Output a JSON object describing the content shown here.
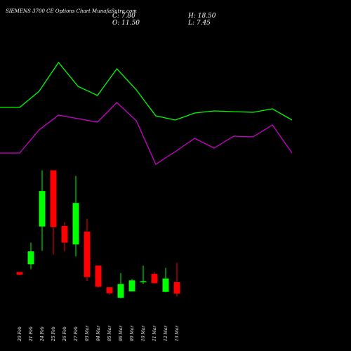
{
  "header": {
    "title": "SIEMENS 3700  CE Options  Chart MunafaSutra.com",
    "close": "C: 7.80",
    "open": "O: 11.50",
    "high": "H: 18.50",
    "low": "L: 7.45"
  },
  "colors": {
    "background": "#000000",
    "up": "#00ff00",
    "down": "#ff0000",
    "line_upper": "#00ff00",
    "line_lower": "#cc00cc",
    "text": "#ffffff"
  },
  "chart_data": {
    "type": "candlestick",
    "categories": [
      "20 Feb",
      "21 Feb",
      "24 Feb",
      "25 Feb",
      "26 Feb",
      "27 Feb",
      "03 Mar",
      "04 Mar",
      "05 Mar",
      "06 Mar",
      "09 Mar",
      "10 Mar",
      "11 Mar",
      "12 Mar",
      "13 Mar"
    ],
    "candles": [
      {
        "open": 10.0,
        "close": 9.4,
        "high": 10.0,
        "low": 9.3
      },
      {
        "open": 11.7,
        "close": 14.5,
        "high": 16.4,
        "low": 10.6
      },
      {
        "open": 19.9,
        "close": 27.6,
        "high": 32.1,
        "low": 14.6
      },
      {
        "open": 32.1,
        "close": 19.8,
        "high": 32.1,
        "low": 13.8
      },
      {
        "open": 20.0,
        "close": 16.4,
        "high": 20.8,
        "low": 14.5
      },
      {
        "open": 16.0,
        "close": 25.0,
        "high": 30.9,
        "low": 13.4
      },
      {
        "open": 18.8,
        "close": 8.9,
        "high": 21.6,
        "low": 8.1
      },
      {
        "open": 11.4,
        "close": 6.8,
        "high": 11.4,
        "low": 6.6
      },
      {
        "open": 6.7,
        "close": 5.4,
        "high": 6.7,
        "low": 5.1
      },
      {
        "open": 4.4,
        "close": 7.4,
        "high": 9.8,
        "low": 4.3
      },
      {
        "open": 5.8,
        "close": 8.2,
        "high": 8.5,
        "low": 5.8
      },
      {
        "open": 7.9,
        "close": 8.0,
        "high": 11.4,
        "low": 7.4
      },
      {
        "open": 9.6,
        "close": 7.6,
        "high": 10.0,
        "low": 7.5
      },
      {
        "open": 5.7,
        "close": 8.6,
        "high": 10.9,
        "low": 5.6
      },
      {
        "open": 7.8,
        "close": 5.3,
        "high": 12.0,
        "low": 4.7
      }
    ],
    "overlay_lines": [
      {
        "color": "#00ff00",
        "values": [
          153,
          153,
          130,
          89,
          123,
          136,
          98,
          128,
          165,
          171,
          161,
          158,
          159,
          160,
          155,
          171
        ]
      },
      {
        "color": "#cc00cc",
        "values": [
          218,
          218,
          185,
          164,
          169,
          174,
          146,
          172,
          234,
          216,
          197,
          211,
          194,
          195,
          178,
          218
        ]
      }
    ]
  }
}
